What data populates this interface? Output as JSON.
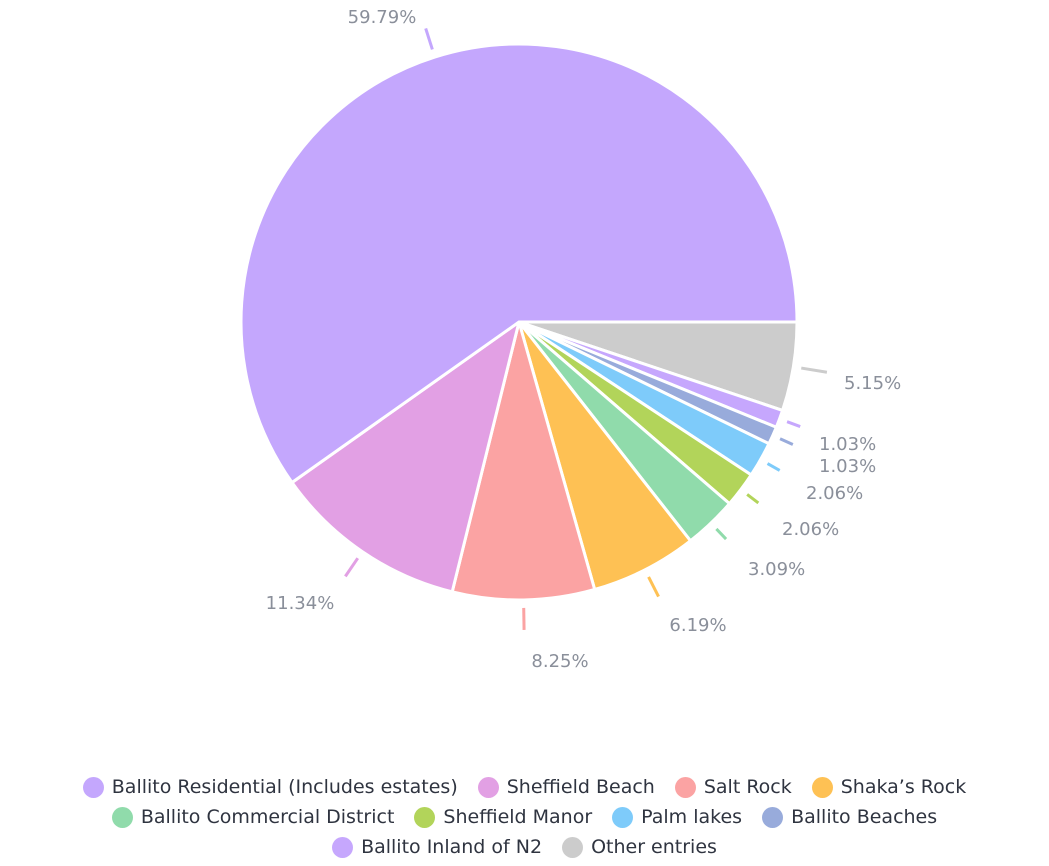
{
  "chart_data": {
    "type": "pie",
    "title": "",
    "slices": [
      {
        "name": "Ballito Residential (Includes estates)",
        "value": 59.79,
        "label": "59.79%",
        "color": "#c4a7fd"
      },
      {
        "name": "Sheffield Beach",
        "value": 11.34,
        "label": "11.34%",
        "color": "#e2a0e4"
      },
      {
        "name": "Salt Rock",
        "value": 8.25,
        "label": "8.25%",
        "color": "#fba3a3"
      },
      {
        "name": "Shaka’s Rock",
        "value": 6.19,
        "label": "6.19%",
        "color": "#fec154"
      },
      {
        "name": "Ballito Commercial District",
        "value": 3.09,
        "label": "3.09%",
        "color": "#90dbab"
      },
      {
        "name": "Sheffield Manor",
        "value": 2.06,
        "label": "2.06%",
        "color": "#b2d45a"
      },
      {
        "name": "Palm lakes",
        "value": 2.06,
        "label": "2.06%",
        "color": "#7ecbfa"
      },
      {
        "name": "Ballito Beaches",
        "value": 1.03,
        "label": "1.03%",
        "color": "#98abdb"
      },
      {
        "name": "Ballito Inland of N2",
        "value": 1.03,
        "label": "1.03%",
        "color": "#c6a7fd"
      },
      {
        "name": "Other entries",
        "value": 5.15,
        "label": "5.15%",
        "color": "#cccccc"
      }
    ],
    "legend_position": "bottom"
  },
  "legend": {
    "rows": [
      [
        0,
        1,
        2,
        3
      ],
      [
        4,
        5,
        6,
        7
      ],
      [
        8,
        9
      ]
    ]
  }
}
